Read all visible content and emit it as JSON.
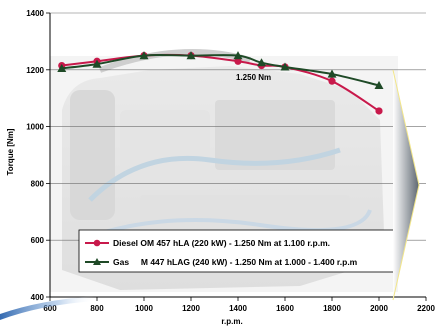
{
  "chart_data": {
    "type": "line",
    "title": "",
    "xlabel": "r.p.m.",
    "ylabel": "Torque [Nm]",
    "xlim": [
      600,
      2200
    ],
    "ylim": [
      400,
      1400
    ],
    "x_ticks": [
      600,
      800,
      1000,
      1200,
      1400,
      1600,
      1800,
      2000,
      2200
    ],
    "y_ticks": [
      400,
      600,
      800,
      1000,
      1200,
      1400
    ],
    "grid": "horizontal",
    "annotation": "1.250 Nm",
    "legend_position": "bottom-center",
    "series": [
      {
        "name": "Diesel OM 457 hLA (220 kW) - 1.250 Nm at 1.100 r.p.m.",
        "color": "#c8194b",
        "marker": "circle",
        "x": [
          650,
          800,
          1000,
          1200,
          1400,
          1500,
          1600,
          1800,
          2000
        ],
        "y": [
          1215,
          1230,
          1250,
          1250,
          1230,
          1215,
          1210,
          1160,
          1055
        ]
      },
      {
        "name": "Gas     M 447 hLAG (240 kW) - 1.250 Nm at 1.000 - 1.400 r.p.m",
        "color": "#1f4a27",
        "marker": "triangle",
        "x": [
          650,
          800,
          1000,
          1200,
          1400,
          1500,
          1600,
          1800,
          2000
        ],
        "y": [
          1205,
          1220,
          1250,
          1250,
          1250,
          1225,
          1210,
          1185,
          1145
        ]
      }
    ]
  }
}
